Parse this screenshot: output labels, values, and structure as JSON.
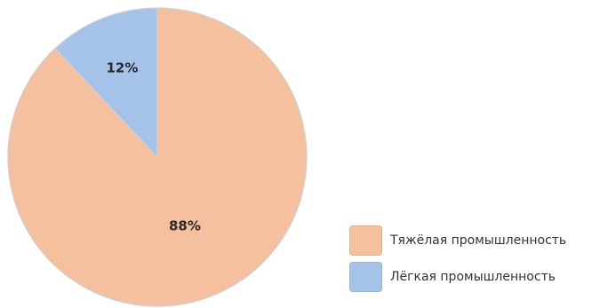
{
  "chart_data": {
    "type": "pie",
    "title": "",
    "slices": [
      {
        "label": "Тяжёлая промышленность",
        "value": 88,
        "display": "88%",
        "color": "#f5c09e"
      },
      {
        "label": "Лёгкая промышленность",
        "value": 12,
        "display": "12%",
        "color": "#a5c3e8"
      }
    ],
    "legend_position": "bottom-right"
  }
}
